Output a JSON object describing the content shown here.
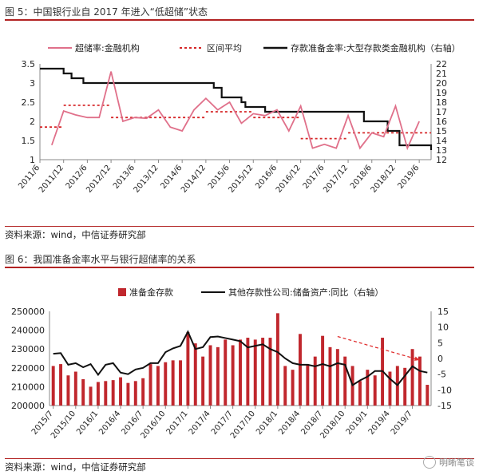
{
  "fig5": {
    "title": "图 5：中国银行业自 2017 年进入“低超储”状态",
    "source": "资料来源：wind，中信证券研究部",
    "chart_data": {
      "type": "line",
      "legend_placement": "top",
      "x_ticks": [
        "2011/6",
        "2011/12",
        "2012/6",
        "2012/12",
        "2013/6",
        "2013/12",
        "2014/6",
        "2014/12",
        "2015/6",
        "2015/12",
        "2016/6",
        "2016/12",
        "2017/6",
        "2017/12",
        "2018/6",
        "2018/12",
        "2019/6"
      ],
      "y_left": {
        "min": 1,
        "max": 3.5,
        "ticks": [
          1,
          1.5,
          2,
          2.5,
          3,
          3.5
        ]
      },
      "y_right": {
        "min": 12,
        "max": 22,
        "ticks": [
          12,
          13,
          14,
          15,
          16,
          17,
          18,
          19,
          20,
          21,
          22
        ]
      },
      "series": [
        {
          "name": "超储率:金融机构",
          "axis": "left",
          "color": "#e0708a",
          "style": "solid",
          "x": [
            "2011/9",
            "2011/12",
            "2012/3",
            "2012/6",
            "2012/9",
            "2012/12",
            "2013/3",
            "2013/6",
            "2013/9",
            "2013/12",
            "2014/3",
            "2014/6",
            "2014/9",
            "2014/12",
            "2015/3",
            "2015/6",
            "2015/9",
            "2015/12",
            "2016/3",
            "2016/6",
            "2016/9",
            "2016/12",
            "2017/3",
            "2017/6",
            "2017/9",
            "2017/12",
            "2018/3",
            "2018/6",
            "2018/9",
            "2018/12",
            "2019/3",
            "2019/6"
          ],
          "y": [
            1.38,
            2.27,
            2.17,
            2.1,
            2.1,
            3.3,
            2.0,
            2.1,
            2.08,
            2.3,
            1.85,
            1.75,
            2.3,
            2.6,
            2.3,
            2.5,
            1.95,
            2.2,
            2.15,
            2.3,
            1.75,
            2.4,
            1.3,
            1.4,
            1.3,
            2.15,
            1.3,
            1.7,
            1.6,
            2.4,
            1.3,
            2.0
          ]
        },
        {
          "name": "区间平均",
          "axis": "left",
          "color": "#d62728",
          "style": "dashed",
          "segments": [
            {
              "x": [
                "2011/6",
                "2011/12"
              ],
              "y": 1.85
            },
            {
              "x": [
                "2011/12",
                "2012/12"
              ],
              "y": 2.42
            },
            {
              "x": [
                "2012/12",
                "2014/12"
              ],
              "y": 2.1
            },
            {
              "x": [
                "2014/12",
                "2015/12"
              ],
              "y": 2.25
            },
            {
              "x": [
                "2015/12",
                "2016/12"
              ],
              "y": 2.1
            },
            {
              "x": [
                "2016/12",
                "2017/12"
              ],
              "y": 1.55
            },
            {
              "x": [
                "2017/12",
                "2019/9"
              ],
              "y": 1.7
            }
          ]
        },
        {
          "name": "存款准备金率:大型存款类金融机构（右轴）",
          "axis": "right",
          "color": "#111111",
          "style": "solid",
          "step_x": [
            "2011/6",
            "2011/12",
            "2012/2",
            "2012/5",
            "2015/2",
            "2015/4",
            "2015/9",
            "2015/10",
            "2016/3",
            "2018/4",
            "2018/10",
            "2019/1",
            "2019/9"
          ],
          "step_y": [
            21.5,
            21.0,
            20.5,
            20.0,
            19.5,
            18.5,
            18.0,
            17.5,
            17.0,
            16.0,
            15.0,
            13.5,
            13.0
          ]
        }
      ]
    }
  },
  "fig6": {
    "title": "图 6：我国准备金率水平与银行超储率的关系",
    "source": "资料来源：wind，中信证券研究部",
    "watermark": "明晰笔谈",
    "chart_data": {
      "type": "bar",
      "legend_placement": "top",
      "x_ticks": [
        "2015/7",
        "2015/10",
        "2016/1",
        "2016/4",
        "2016/7",
        "2016/10",
        "2017/1",
        "2017/4",
        "2017/7",
        "2017/10",
        "2018/1",
        "2018/4",
        "2018/7",
        "2018/10",
        "2019/1",
        "2019/4",
        "2019/7"
      ],
      "y_left": {
        "min": 200000,
        "max": 250000,
        "ticks": [
          200000,
          210000,
          220000,
          230000,
          240000,
          250000
        ]
      },
      "y_right": {
        "min": -15,
        "max": 15,
        "ticks": [
          -15,
          -10,
          -5,
          0,
          5,
          10,
          15
        ]
      },
      "categories": [
        "2015/7",
        "2015/8",
        "2015/9",
        "2015/10",
        "2015/11",
        "2015/12",
        "2016/1",
        "2016/2",
        "2016/3",
        "2016/4",
        "2016/5",
        "2016/6",
        "2016/7",
        "2016/8",
        "2016/9",
        "2016/10",
        "2016/11",
        "2016/12",
        "2017/1",
        "2017/2",
        "2017/3",
        "2017/4",
        "2017/5",
        "2017/6",
        "2017/7",
        "2017/8",
        "2017/9",
        "2017/10",
        "2017/11",
        "2017/12",
        "2018/1",
        "2018/2",
        "2018/3",
        "2018/4",
        "2018/5",
        "2018/6",
        "2018/7",
        "2018/8",
        "2018/9",
        "2018/10",
        "2018/11",
        "2018/12",
        "2019/1",
        "2019/2",
        "2019/3",
        "2019/4",
        "2019/5",
        "2019/6",
        "2019/7",
        "2019/8",
        "2019/9"
      ],
      "series": [
        {
          "name": "准备金存款",
          "axis": "left",
          "color": "#c0272d",
          "values": [
            221000,
            222000,
            216000,
            218000,
            214000,
            210000,
            212500,
            213000,
            213500,
            215000,
            212000,
            213000,
            214500,
            222000,
            221000,
            223000,
            224000,
            224000,
            239000,
            233000,
            226000,
            232000,
            231000,
            235000,
            232000,
            235000,
            236000,
            235000,
            236000,
            236000,
            249000,
            221000,
            219000,
            238000,
            222000,
            226000,
            237000,
            231000,
            230000,
            226000,
            221000,
            213000,
            219000,
            216000,
            236000,
            218000,
            221000,
            220000,
            230000,
            226000,
            211000
          ]
        },
        {
          "name": "其他存款性公司:储备资产:同比（右轴）",
          "axis": "right",
          "color": "#111111",
          "values": [
            1.5,
            1.7,
            -2.0,
            -1.5,
            -2.8,
            -1.8,
            -5.2,
            -2.0,
            -1.5,
            -4.5,
            -5.0,
            -3.5,
            -3.0,
            -1.5,
            -1.5,
            2.0,
            3.2,
            4.0,
            8.5,
            3.0,
            3.6,
            6.8,
            7.0,
            6.5,
            6.0,
            5.5,
            3.5,
            4.0,
            4.5,
            3.0,
            2.0,
            0.0,
            -1.5,
            -2.0,
            -2.0,
            -2.5,
            -1.8,
            -2.5,
            -1.5,
            -2.0,
            -8.5,
            -7.0,
            -5.8,
            -4.0,
            -4.0,
            -6.5,
            -8.5,
            -5.5,
            -2.5,
            -4.0,
            -4.5
          ]
        }
      ]
    }
  }
}
